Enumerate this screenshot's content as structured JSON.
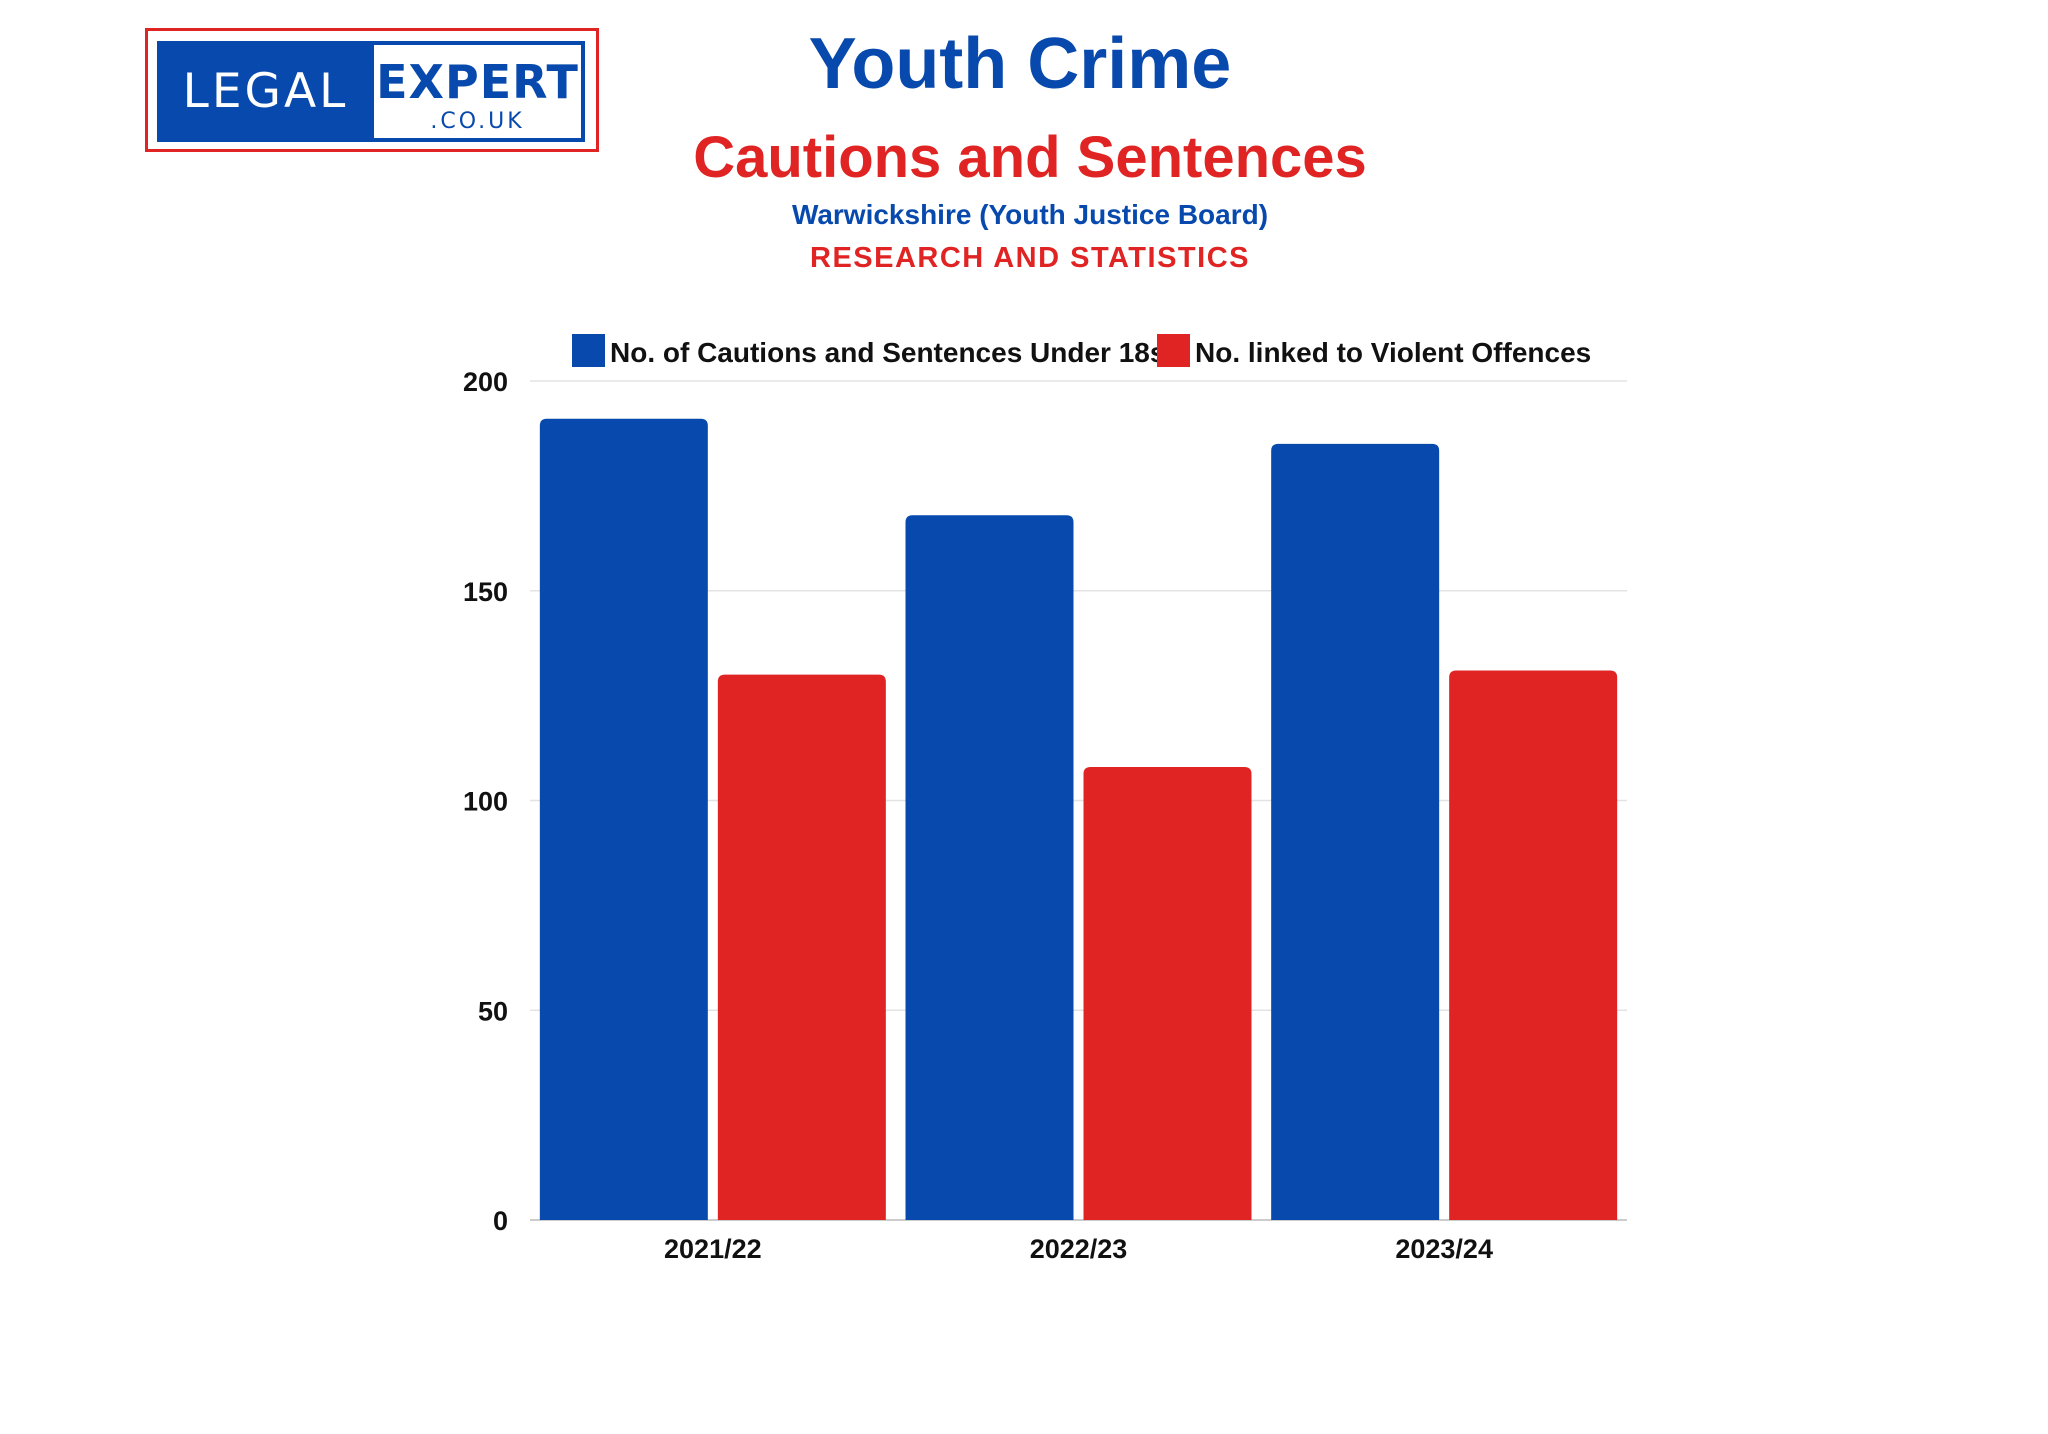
{
  "logo": {
    "left_text": "LEGAL",
    "right_text": "EXPERT",
    "domain_text": ".CO.UK"
  },
  "header": {
    "title": "Youth Crime",
    "subtitle": "Cautions and Sentences",
    "source": "Warwickshire (Youth Justice Board)",
    "tagline": "RESEARCH AND STATISTICS"
  },
  "colors": {
    "blue": "#0849ad",
    "red": "#e02424"
  },
  "chart_data": {
    "type": "bar",
    "categories": [
      "2021/22",
      "2022/23",
      "2023/24"
    ],
    "series": [
      {
        "name": "No. of Cautions and Sentences Under 18s",
        "values": [
          191,
          168,
          185
        ],
        "color": "#0849ad"
      },
      {
        "name": "No. linked to Violent Offences",
        "values": [
          130,
          108,
          131
        ],
        "color": "#e02424"
      }
    ],
    "ylim": [
      0,
      200
    ],
    "yticks": [
      0,
      50,
      100,
      150,
      200
    ],
    "grid": true,
    "legend": "top"
  }
}
